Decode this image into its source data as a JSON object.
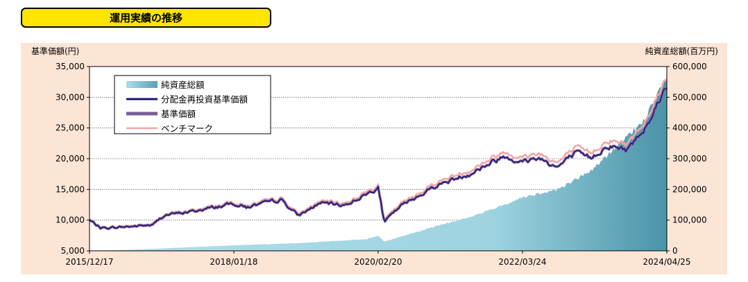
{
  "section_title": "運用実績の推移",
  "chart_data": {
    "type": "line+area",
    "y_left_label": "基準価額(円)",
    "y_right_label": "純資産総額(百万円)",
    "y_left_range": [
      5000,
      35000
    ],
    "y_left_ticks": [
      "5,000",
      "10,000",
      "15,000",
      "20,000",
      "25,000",
      "30,000",
      "35,000"
    ],
    "y_left_tick_values": [
      5000,
      10000,
      15000,
      20000,
      25000,
      30000,
      35000
    ],
    "y_right_range": [
      0,
      600000
    ],
    "y_right_ticks": [
      "0",
      "100,000",
      "200,000",
      "300,000",
      "400,000",
      "500,000",
      "600,000"
    ],
    "y_right_tick_values": [
      0,
      100000,
      200000,
      300000,
      400000,
      500000,
      600000
    ],
    "x_tick_labels": [
      "2015/12/17",
      "2018/01/18",
      "2020/02/20",
      "2022/03/24",
      "2024/04/25"
    ],
    "x_range": [
      "2015/12/17",
      "2024/04/25"
    ],
    "grid": "horizontal dotted",
    "legend": {
      "placement": "top-left",
      "entries": [
        {
          "name": "純資産総額",
          "color": "#7FC3D4",
          "style": "area"
        },
        {
          "name": "分配金再投資基準価額",
          "color": "#14146E",
          "style": "line"
        },
        {
          "name": "基準価額",
          "color": "#7A5C99",
          "style": "thick-line"
        },
        {
          "name": "ベンチマーク",
          "color": "#F2A7A7",
          "style": "line"
        }
      ]
    },
    "series": [
      {
        "name": "基準価額",
        "x": [
          "2015/12/17",
          "2016/02/15",
          "2016/06/20",
          "2016/11/15",
          "2017/01/15",
          "2017/06/15",
          "2018/01/18",
          "2018/03/25",
          "2018/09/25",
          "2018/12/25",
          "2019/04/20",
          "2019/08/25",
          "2019/12/20",
          "2020/02/20",
          "2020/03/23",
          "2020/06/20",
          "2020/12/20",
          "2021/06/20",
          "2021/12/20",
          "2022/03/24",
          "2022/06/15",
          "2022/09/25",
          "2022/12/25",
          "2023/03/20",
          "2023/06/20",
          "2023/09/25",
          "2023/12/20",
          "2024/04/25"
        ],
        "values": [
          10000,
          8700,
          8900,
          9200,
          10800,
          11400,
          12700,
          12100,
          13300,
          10700,
          12800,
          12400,
          14200,
          15300,
          9700,
          12300,
          15600,
          17600,
          20500,
          19400,
          20200,
          18600,
          20800,
          20100,
          22200,
          21400,
          24500,
          32000
        ]
      },
      {
        "name": "純資産総額",
        "x": [
          "2015/12/17",
          "2016/06/20",
          "2017/01/15",
          "2018/01/18",
          "2018/12/25",
          "2019/12/20",
          "2020/02/20",
          "2020/03/23",
          "2020/12/20",
          "2021/06/20",
          "2021/12/20",
          "2022/03/24",
          "2022/09/25",
          "2023/03/20",
          "2023/09/25",
          "2023/12/20",
          "2024/04/25"
        ],
        "values": [
          0,
          3000,
          8000,
          18000,
          25000,
          38000,
          50000,
          30000,
          80000,
          110000,
          150000,
          175000,
          200000,
          260000,
          370000,
          420000,
          560000
        ]
      }
    ]
  }
}
